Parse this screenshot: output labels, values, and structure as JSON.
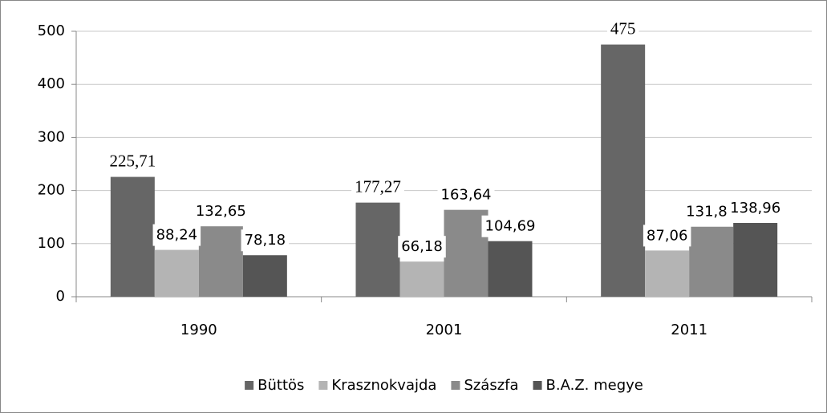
{
  "chart_data": {
    "type": "bar",
    "categories": [
      "1990",
      "2001",
      "2011"
    ],
    "series": [
      {
        "name": "Büttös",
        "color": "#666666",
        "values": [
          225.71,
          177.27,
          475
        ],
        "value_labels": [
          "225,71",
          "177,27",
          "475"
        ]
      },
      {
        "name": "Krasznokvajda",
        "color": "#b4b4b4",
        "values": [
          88.24,
          66.18,
          87.06
        ],
        "value_labels": [
          "88,24",
          "66,18",
          "87,06"
        ]
      },
      {
        "name": "Szászfa",
        "color": "#8a8a8a",
        "values": [
          132.65,
          163.64,
          131.82
        ],
        "value_labels": [
          "132,65",
          "163,64",
          "131,82"
        ]
      },
      {
        "name": "B.A.Z. megye",
        "color": "#555555",
        "values": [
          78.18,
          104.69,
          138.96
        ],
        "value_labels": [
          "78,18",
          "104,69",
          "138,96"
        ]
      }
    ],
    "ylim": [
      0,
      500
    ],
    "yticks": [
      0,
      100,
      200,
      300,
      400,
      500
    ],
    "grid": true,
    "legend": "bottom"
  }
}
